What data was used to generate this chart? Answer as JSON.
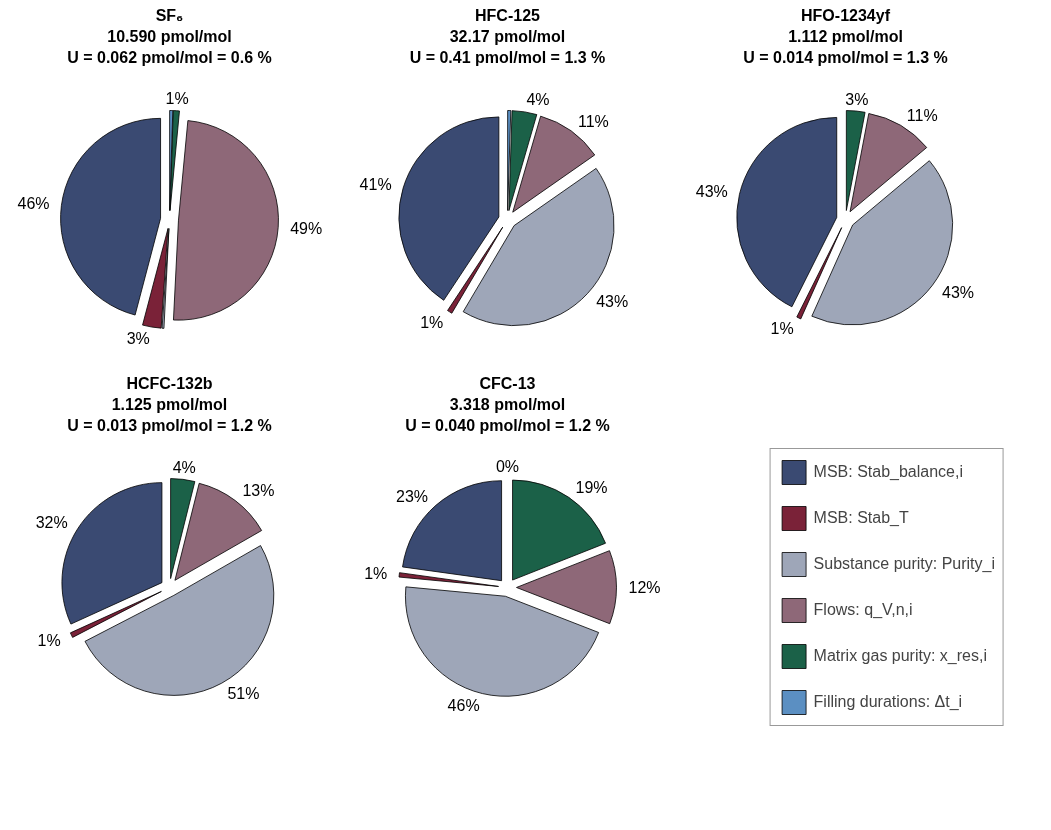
{
  "chart_data": [
    {
      "type": "pie",
      "title": "SF₆\n10.590 pmol/mol\nU = 0.062 pmol/mol = 0.6 %",
      "categories": [
        "MSB: Stab_balance,i",
        "MSB: Stab_T",
        "Substance purity: Purity_i",
        "Flows: q_V,n,i",
        "Matrix gas purity: x_res,i",
        "Filling durations: Δt_i"
      ],
      "colors": [
        "#3a4a72",
        "#7a2238",
        "#9ea6b8",
        "#8e6878",
        "#1b6148",
        "#5b8fc2"
      ],
      "values": [
        45.9,
        3.0,
        0.3,
        49.3,
        1.0,
        0.5
      ],
      "value_labels": [
        "46%",
        "3%",
        null,
        "49%",
        "1%",
        null
      ],
      "legend": "bottom right"
    },
    {
      "type": "pie",
      "title": "HFC-125\n32.17 pmol/mol\nU = 0.41 pmol/mol = 1.3 %",
      "colors": [
        "#3a4a72",
        "#7a2238",
        "#9ea6b8",
        "#8e6878",
        "#1b6148",
        "#5b8fc2"
      ],
      "values": [
        40.7,
        0.8,
        43.2,
        10.8,
        4.0,
        0.5
      ],
      "value_labels": [
        "41%",
        "1%",
        "43%",
        "11%",
        "4%",
        null
      ]
    },
    {
      "type": "pie",
      "title": "HFO-1234yf\n1.112 pmol/mol\nU = 0.014 pmol/mol = 1.3 %",
      "colors": [
        "#3a4a72",
        "#7a2238",
        "#9ea6b8",
        "#8e6878",
        "#1b6148",
        "#5b8fc2"
      ],
      "values": [
        42.6,
        0.7,
        42.8,
        10.9,
        3.0,
        0
      ],
      "value_labels": [
        "43%",
        "1%",
        "43%",
        "11%",
        "3%",
        null
      ]
    },
    {
      "type": "pie",
      "title": "HCFC-132b\n1.125 pmol/mol\nU = 0.013 pmol/mol = 1.2 %",
      "colors": [
        "#3a4a72",
        "#7a2238",
        "#9ea6b8",
        "#8e6878",
        "#1b6148",
        "#5b8fc2"
      ],
      "values": [
        31.8,
        0.8,
        50.7,
        12.8,
        3.9,
        0
      ],
      "value_labels": [
        "32%",
        "1%",
        "51%",
        "13%",
        "4%",
        null
      ]
    },
    {
      "type": "pie",
      "title": "CFC-13\n3.318 pmol/mol\nU = 0.040 pmol/mol = 1.2 %",
      "colors": [
        "#3a4a72",
        "#7a2238",
        "#9ea6b8",
        "#8e6878",
        "#1b6148",
        "#5b8fc2"
      ],
      "values": [
        22.8,
        0.7,
        45.6,
        11.9,
        19.0,
        0
      ],
      "value_labels": [
        "23%",
        "1%",
        "46%",
        "12%",
        "19%",
        "0%"
      ]
    }
  ]
}
